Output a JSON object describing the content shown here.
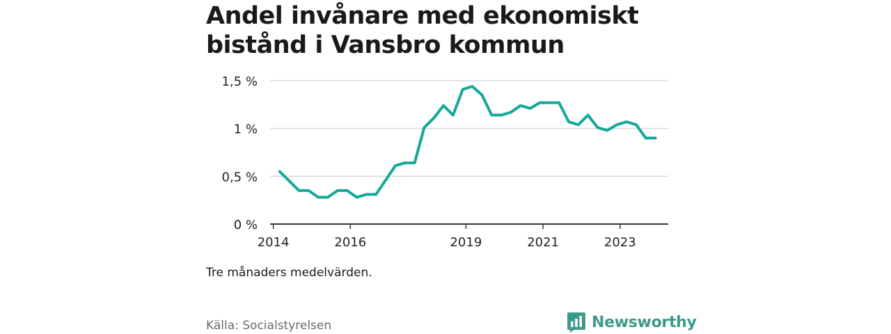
{
  "title": "Andel invånare med ekonomiskt bistånd i Vansbro kommun",
  "note": "Tre månaders medelvärden.",
  "source": "Källa: Socialstyrelsen",
  "brand": "Newsworthy",
  "colors": {
    "line": "#14a89a",
    "grid": "#d9d9d9",
    "axis": "#333333",
    "brand": "#3d9a8b"
  },
  "icons": {
    "brand_logo": "newsworthy-bar-chart-badge-icon"
  },
  "chart_data": {
    "type": "line",
    "title": "Andel invånare med ekonomiskt bistånd i Vansbro kommun",
    "xlabel": "",
    "ylabel": "",
    "ylim": [
      0,
      1.5
    ],
    "y_ticks": [
      {
        "value": 0,
        "label": "0 %"
      },
      {
        "value": 0.5,
        "label": "0,5 %"
      },
      {
        "value": 1,
        "label": "1 %"
      },
      {
        "value": 1.5,
        "label": "1,5 %"
      }
    ],
    "xlim": [
      "2013-12",
      "2024-04"
    ],
    "x_ticks": [
      {
        "value": "2014-01",
        "label": "2014"
      },
      {
        "value": "2016-01",
        "label": "2016"
      },
      {
        "value": "2019-01",
        "label": "2019"
      },
      {
        "value": "2021-01",
        "label": "2021"
      },
      {
        "value": "2023-01",
        "label": "2023"
      }
    ],
    "grid": true,
    "series": [
      {
        "x": [
          "2014-03",
          "2014-06",
          "2014-09",
          "2014-12",
          "2015-03",
          "2015-06",
          "2015-09",
          "2015-12",
          "2016-03",
          "2016-06",
          "2016-09",
          "2016-12",
          "2017-03",
          "2017-06",
          "2017-09",
          "2017-12",
          "2018-03",
          "2018-06",
          "2018-09",
          "2018-12",
          "2019-03",
          "2019-06",
          "2019-09",
          "2019-12",
          "2020-03",
          "2020-06",
          "2020-09",
          "2020-12",
          "2021-03",
          "2021-06",
          "2021-09",
          "2021-12",
          "2022-03",
          "2022-06",
          "2022-09",
          "2022-12",
          "2023-03",
          "2023-06",
          "2023-09",
          "2023-12"
        ],
        "y": [
          0.55,
          0.45,
          0.35,
          0.35,
          0.28,
          0.28,
          0.35,
          0.35,
          0.28,
          0.31,
          0.31,
          0.46,
          0.61,
          0.64,
          0.64,
          1.01,
          1.11,
          1.24,
          1.14,
          1.41,
          1.44,
          1.35,
          1.14,
          1.14,
          1.17,
          1.24,
          1.21,
          1.27,
          1.27,
          1.27,
          1.07,
          1.04,
          1.14,
          1.01,
          0.98,
          1.04,
          1.07,
          1.04,
          0.9,
          0.9
        ]
      }
    ]
  }
}
